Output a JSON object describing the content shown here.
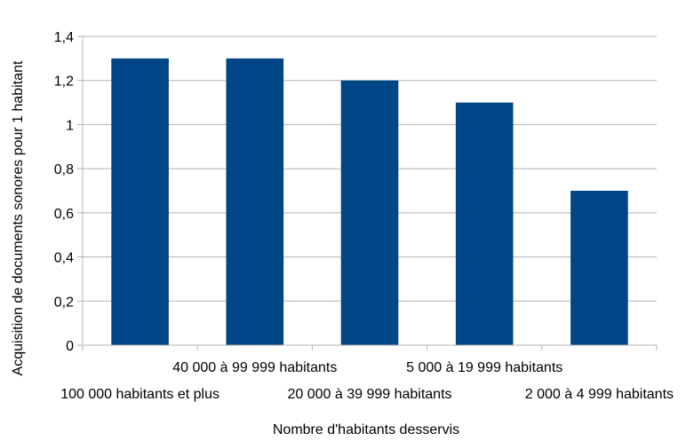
{
  "colors": {
    "bar": "#004586",
    "grid": "#b3b3b3",
    "axis": "#b3b3b3",
    "background": "#ffffff"
  },
  "chart_data": {
    "type": "bar",
    "title": "",
    "xlabel": "Nombre d'habitants desservis",
    "ylabel": "Acquisition de documents sonores pour 1 habitant",
    "categories": [
      "100 000 habitants et plus",
      "40 000 à 99 999 habitants",
      "20 000 à 39 999 habitants",
      "5 000 à 19 999 habitants",
      "2 000 à 4 999 habitants"
    ],
    "values": [
      1.3,
      1.3,
      1.2,
      1.1,
      0.7
    ],
    "ylim": [
      0,
      1.4
    ],
    "yticks": [
      0,
      0.2,
      0.4,
      0.6,
      0.8,
      1,
      1.2,
      1.4
    ],
    "ytick_labels": [
      "0",
      "0,2",
      "0,4",
      "0,6",
      "0,8",
      "1",
      "1,2",
      "1,4"
    ],
    "grid": true,
    "legend": "none"
  }
}
